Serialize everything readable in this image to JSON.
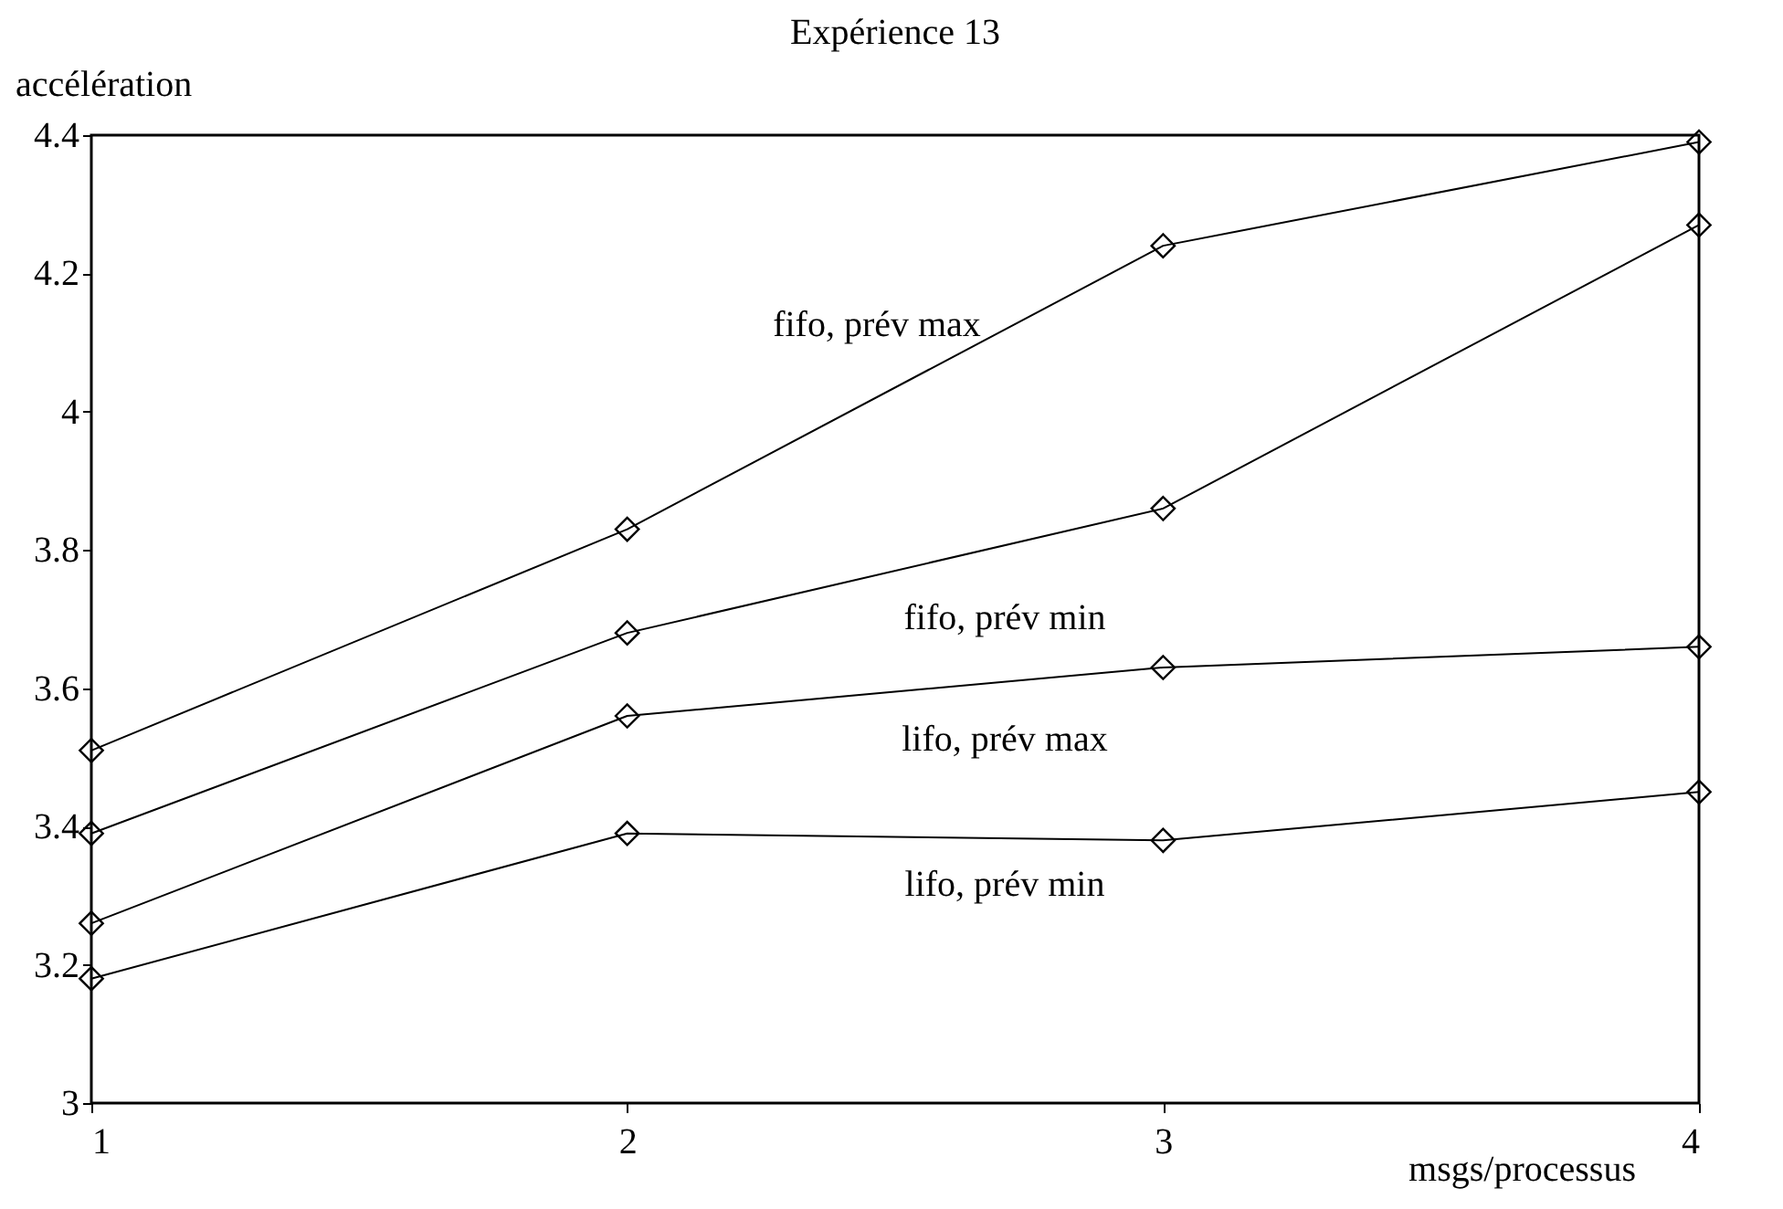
{
  "chart_data": {
    "type": "line",
    "title": "Expérience 13",
    "xlabel": "msgs/processus",
    "ylabel": "accélération",
    "x": [
      1,
      2,
      3,
      4
    ],
    "xlim": [
      1,
      4
    ],
    "xticks": [
      1,
      2,
      3,
      4
    ],
    "ylim": [
      3,
      4.4
    ],
    "yticks": [
      3,
      3.2,
      3.4,
      3.6,
      3.8,
      4,
      4.2,
      4.4
    ],
    "series": [
      {
        "name": "fifo, prév max",
        "color": "#000000",
        "values": [
          3.51,
          3.83,
          4.24,
          4.39
        ]
      },
      {
        "name": "fifo, prév min",
        "color": "#000000",
        "values": [
          3.39,
          3.68,
          3.86,
          4.27
        ]
      },
      {
        "name": "lifo, prév max",
        "color": "#000000",
        "values": [
          3.26,
          3.56,
          3.63,
          3.66
        ]
      },
      {
        "name": "lifo, prév min",
        "color": "#000000",
        "values": [
          3.18,
          3.39,
          3.38,
          3.45
        ]
      }
    ],
    "marker": "diamond",
    "line_style": "solid",
    "grid": false,
    "legend": false
  }
}
